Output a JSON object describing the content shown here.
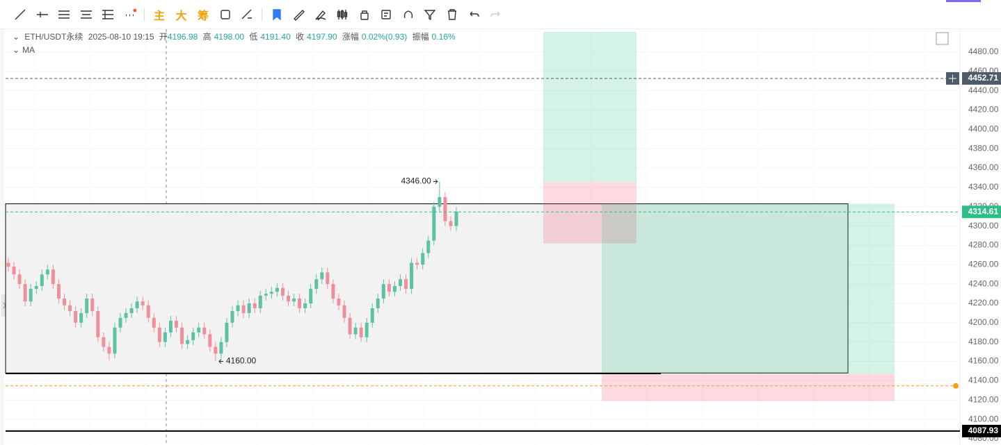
{
  "toolbar": {
    "main": "主",
    "big": "大",
    "chips": "筹"
  },
  "legend": {
    "symbol": "ETH/USDT永续",
    "time": "2025-08-10 19:15",
    "open_label": "开",
    "open": "4196.98",
    "high_label": "高",
    "high": "4198.00",
    "low_label": "低",
    "low": "4191.40",
    "close_label": "收",
    "close": "4197.90",
    "change_label": "涨幅",
    "change": "0.02%(0.93)",
    "amp_label": "振幅",
    "amp": "0.16%",
    "indicator": "MA"
  },
  "chart_data": {
    "type": "candlestick",
    "ylim": [
      4073.5,
      4500.8
    ],
    "yticks": [
      {
        "value": 4080,
        "label": "4080.00"
      },
      {
        "value": 4100,
        "label": "4100.00"
      },
      {
        "value": 4120,
        "label": "4120.00"
      },
      {
        "value": 4140,
        "label": "4140.00"
      },
      {
        "value": 4160,
        "label": "4160.00"
      },
      {
        "value": 4180,
        "label": "4180.00"
      },
      {
        "value": 4200,
        "label": "4200.00"
      },
      {
        "value": 4220,
        "label": "4220.00"
      },
      {
        "value": 4240,
        "label": "4240.00"
      },
      {
        "value": 4260,
        "label": "4260.00"
      },
      {
        "value": 4280,
        "label": "4280.00"
      },
      {
        "value": 4300,
        "label": "4300.00"
      },
      {
        "value": 4320,
        "label": "4320.00"
      },
      {
        "value": 4340,
        "label": "4340.00"
      },
      {
        "value": 4360,
        "label": "4360.00"
      },
      {
        "value": 4380,
        "label": "4380.00"
      },
      {
        "value": 4400,
        "label": "4400.00"
      },
      {
        "value": 4420,
        "label": "4420.00"
      },
      {
        "value": 4440,
        "label": "4440.00"
      },
      {
        "value": 4460,
        "label": "4460.00"
      },
      {
        "value": 4480,
        "label": "4480.00"
      }
    ],
    "grid": true,
    "up_color": "#5cc2a3",
    "down_color": "#ef8f9a",
    "open": [
      4262,
      4258,
      4250,
      4240,
      4222,
      4235,
      4238,
      4250,
      4255,
      4240,
      4225,
      4218,
      4212,
      4200,
      4210,
      4225,
      4212,
      4185,
      4175,
      4168,
      4195,
      4205,
      4210,
      4215,
      4222,
      4218,
      4205,
      4195,
      4180,
      4190,
      4202,
      4195,
      4178,
      4182,
      4190,
      4195,
      4188,
      4175,
      4168,
      4180,
      4200,
      4212,
      4218,
      4210,
      4220,
      4215,
      4228,
      4230,
      4232,
      4236,
      4228,
      4222,
      4225,
      4215,
      4220,
      4235,
      4245,
      4252,
      4240,
      4225,
      4218,
      4205,
      4188,
      4195,
      4185,
      4200,
      4215,
      4225,
      4240,
      4232,
      4238,
      4245,
      4235,
      4262,
      4260,
      4272,
      4285,
      4320,
      4330,
      4305,
      4300
    ],
    "high": [
      4267,
      4263,
      4255,
      4245,
      4240,
      4243,
      4255,
      4260,
      4260,
      4245,
      4230,
      4223,
      4217,
      4215,
      4230,
      4230,
      4217,
      4190,
      4180,
      4200,
      4210,
      4215,
      4220,
      4227,
      4227,
      4223,
      4210,
      4200,
      4195,
      4207,
      4207,
      4200,
      4187,
      4195,
      4200,
      4200,
      4193,
      4180,
      4185,
      4205,
      4217,
      4223,
      4223,
      4225,
      4225,
      4233,
      4235,
      4237,
      4241,
      4241,
      4233,
      4230,
      4230,
      4225,
      4240,
      4250,
      4257,
      4257,
      4245,
      4230,
      4223,
      4210,
      4200,
      4200,
      4205,
      4220,
      4230,
      4245,
      4245,
      4243,
      4250,
      4250,
      4267,
      4267,
      4277,
      4290,
      4325,
      4346,
      4335,
      4310,
      4320
    ],
    "low": [
      4253,
      4245,
      4235,
      4217,
      4217,
      4230,
      4233,
      4245,
      4235,
      4220,
      4213,
      4207,
      4195,
      4195,
      4205,
      4207,
      4180,
      4170,
      4161,
      4163,
      4190,
      4200,
      4205,
      4210,
      4213,
      4200,
      4190,
      4175,
      4175,
      4185,
      4190,
      4173,
      4173,
      4177,
      4185,
      4183,
      4170,
      4160,
      4163,
      4175,
      4195,
      4207,
      4205,
      4205,
      4210,
      4210,
      4223,
      4225,
      4227,
      4223,
      4217,
      4217,
      4210,
      4210,
      4215,
      4230,
      4240,
      4235,
      4220,
      4213,
      4200,
      4183,
      4183,
      4180,
      4180,
      4195,
      4210,
      4220,
      4227,
      4227,
      4233,
      4230,
      4230,
      4255,
      4255,
      4267,
      4280,
      4315,
      4300,
      4295,
      4295
    ],
    "close": [
      4258,
      4250,
      4240,
      4222,
      4235,
      4238,
      4250,
      4255,
      4240,
      4225,
      4218,
      4212,
      4200,
      4210,
      4225,
      4212,
      4185,
      4175,
      4168,
      4195,
      4205,
      4210,
      4215,
      4222,
      4218,
      4205,
      4195,
      4180,
      4190,
      4202,
      4195,
      4178,
      4182,
      4190,
      4195,
      4188,
      4175,
      4168,
      4180,
      4200,
      4212,
      4218,
      4210,
      4220,
      4215,
      4228,
      4230,
      4232,
      4236,
      4228,
      4222,
      4225,
      4215,
      4220,
      4235,
      4245,
      4252,
      4240,
      4225,
      4218,
      4205,
      4188,
      4195,
      4185,
      4200,
      4215,
      4225,
      4240,
      4232,
      4238,
      4245,
      4235,
      4262,
      4260,
      4272,
      4285,
      4320,
      4330,
      4305,
      4300,
      4315
    ],
    "annotations": [
      {
        "value": 4346,
        "label": "4346.00"
      },
      {
        "value": 4160,
        "label": "4160.00"
      }
    ],
    "price_lines": [
      {
        "value": 4452.71,
        "color": "#4e5b6a"
      },
      {
        "value": 4314.61,
        "color": "#2ebd85"
      },
      {
        "value": 4087.93,
        "color": "#000000"
      }
    ],
    "alert_line": 4134.7,
    "rectangle": [
      4323,
      4148
    ],
    "positions": [
      {
        "target": 4500.8,
        "entry": 4346,
        "stop": 4282
      },
      {
        "target": 4323,
        "entry": 4147,
        "stop": 4119
      }
    ]
  }
}
